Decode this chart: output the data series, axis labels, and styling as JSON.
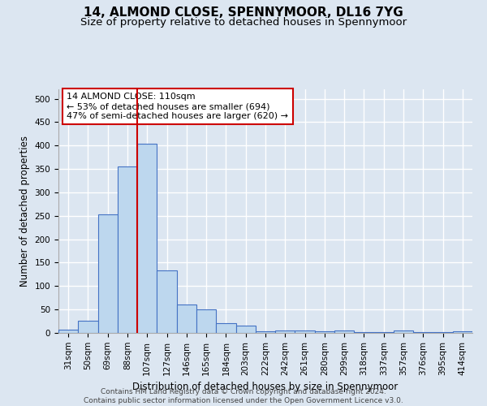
{
  "title_line1": "14, ALMOND CLOSE, SPENNYMOOR, DL16 7YG",
  "title_line2": "Size of property relative to detached houses in Spennymoor",
  "xlabel": "Distribution of detached houses by size in Spennymoor",
  "ylabel": "Number of detached properties",
  "categories": [
    "31sqm",
    "50sqm",
    "69sqm",
    "88sqm",
    "107sqm",
    "127sqm",
    "146sqm",
    "165sqm",
    "184sqm",
    "203sqm",
    "222sqm",
    "242sqm",
    "261sqm",
    "280sqm",
    "299sqm",
    "318sqm",
    "337sqm",
    "357sqm",
    "376sqm",
    "395sqm",
    "414sqm"
  ],
  "values": [
    7,
    26,
    253,
    355,
    403,
    133,
    60,
    50,
    20,
    16,
    4,
    5,
    6,
    4,
    5,
    1,
    1,
    5,
    1,
    1,
    4
  ],
  "bar_color": "#BDD7EE",
  "bar_edge_color": "#4472C4",
  "vline_color": "#CC0000",
  "vline_index": 4,
  "annotation_line1": "14 ALMOND CLOSE: 110sqm",
  "annotation_line2": "← 53% of detached houses are smaller (694)",
  "annotation_line3": "47% of semi-detached houses are larger (620) →",
  "annotation_box_color": "white",
  "annotation_box_edge": "#CC0000",
  "ylim": [
    0,
    520
  ],
  "yticks": [
    0,
    50,
    100,
    150,
    200,
    250,
    300,
    350,
    400,
    450,
    500
  ],
  "footer_line1": "Contains HM Land Registry data © Crown copyright and database right 2024.",
  "footer_line2": "Contains public sector information licensed under the Open Government Licence v3.0.",
  "bg_color": "#DCE6F1",
  "plot_bg_color": "#DCE6F1",
  "grid_color": "white",
  "title_fontsize": 11,
  "subtitle_fontsize": 9.5,
  "axis_label_fontsize": 8.5,
  "tick_fontsize": 7.5,
  "annotation_fontsize": 8,
  "footer_fontsize": 6.5
}
